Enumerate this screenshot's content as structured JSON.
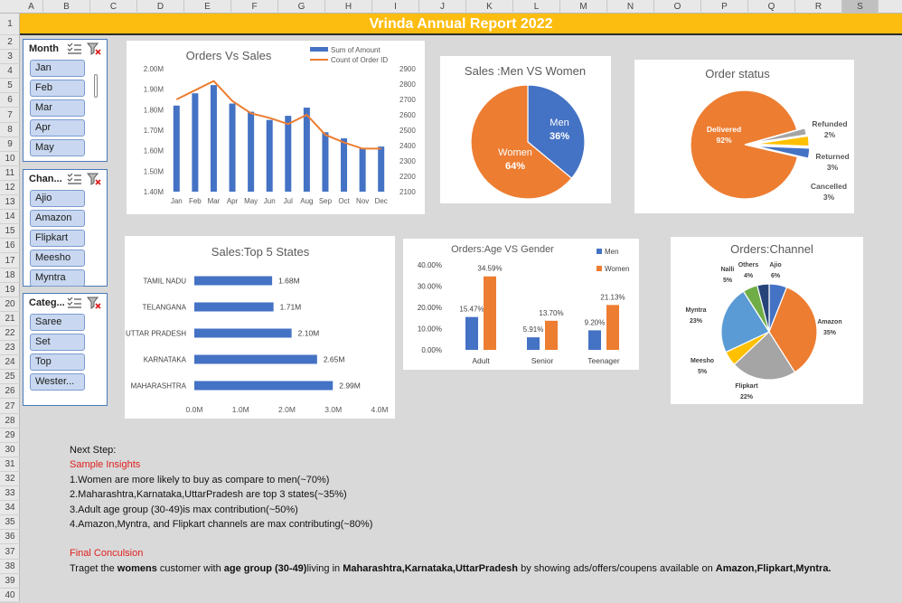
{
  "columns": [
    "A",
    "B",
    "C",
    "D",
    "E",
    "F",
    "G",
    "H",
    "I",
    "J",
    "K",
    "L",
    "M",
    "N",
    "O",
    "P",
    "Q",
    "R",
    "S"
  ],
  "rows": [
    "1",
    "2",
    "3",
    "4",
    "5",
    "6",
    "7",
    "8",
    "9",
    "10",
    "11",
    "12",
    "13",
    "14",
    "15",
    "16",
    "17",
    "18",
    "19",
    "20",
    "21",
    "22",
    "23",
    "24",
    "25",
    "26",
    "27",
    "28",
    "29",
    "30",
    "31",
    "32",
    "33",
    "34",
    "35",
    "36",
    "37",
    "38",
    "39",
    "40"
  ],
  "banner_title": "Vrinda  Annual Report 2022",
  "slicers": {
    "month": {
      "title": "Month",
      "items": [
        "Jan",
        "Feb",
        "Mar",
        "Apr",
        "May"
      ]
    },
    "channel": {
      "title": "Chan...",
      "items": [
        "Ajio",
        "Amazon",
        "Flipkart",
        "Meesho",
        "Myntra"
      ]
    },
    "category": {
      "title": "Categ...",
      "items": [
        "Saree",
        "Set",
        "Top",
        "Wester..."
      ]
    }
  },
  "colors": {
    "blue": "#4472c4",
    "orange": "#ed7d31",
    "gray": "#a5a5a5",
    "yellow": "#ffc000",
    "lightblue": "#5b9bd5",
    "green": "#70ad47",
    "darkblue": "#264478",
    "banner": "#fdbd10"
  },
  "chart_data": [
    {
      "id": "orders_vs_sales",
      "type": "bar+line",
      "title": "Orders Vs Sales",
      "categories": [
        "Jan",
        "Feb",
        "Mar",
        "Apr",
        "May",
        "Jun",
        "Jul",
        "Aug",
        "Sep",
        "Oct",
        "Nov",
        "Dec"
      ],
      "series": [
        {
          "name": "Sum of Amount",
          "type": "bar",
          "axis": "left",
          "values": [
            1.82,
            1.88,
            1.92,
            1.83,
            1.79,
            1.75,
            1.77,
            1.81,
            1.69,
            1.66,
            1.61,
            1.62
          ]
        },
        {
          "name": "Count of Order ID",
          "type": "line",
          "axis": "right",
          "values": [
            2700,
            2760,
            2820,
            2690,
            2610,
            2580,
            2540,
            2600,
            2470,
            2420,
            2380,
            2380
          ]
        }
      ],
      "y_left_ticks": [
        "2.00M",
        "1.90M",
        "1.80M",
        "1.70M",
        "1.60M",
        "1.50M",
        "1.40M"
      ],
      "ylim_left": [
        1.4,
        2.0
      ],
      "y_right_ticks": [
        "2900",
        "2800",
        "2700",
        "2600",
        "2500",
        "2400",
        "2300",
        "2200",
        "2100"
      ],
      "ylim_right": [
        2100,
        2900
      ]
    },
    {
      "id": "sales_men_women",
      "type": "pie",
      "title": "Sales :Men VS Women",
      "slices": [
        {
          "label": "Men",
          "value": 36,
          "pct": "36%"
        },
        {
          "label": "Women",
          "value": 64,
          "pct": "64%"
        }
      ]
    },
    {
      "id": "order_status",
      "type": "pie",
      "title": "Order status",
      "slices": [
        {
          "label": "Delivered",
          "value": 92,
          "pct": "92%"
        },
        {
          "label": "Refunded",
          "value": 2,
          "pct": "2%"
        },
        {
          "label": "Returned",
          "value": 3,
          "pct": "3%"
        },
        {
          "label": "Cancelled",
          "value": 3,
          "pct": "3%"
        }
      ]
    },
    {
      "id": "top5_states",
      "type": "bar",
      "orientation": "horizontal",
      "title": "Sales:Top 5 States",
      "categories": [
        "TAMIL NADU",
        "TELANGANA",
        "UTTAR PRADESH",
        "KARNATAKA",
        "MAHARASHTRA"
      ],
      "values": [
        1.68,
        1.71,
        2.1,
        2.65,
        2.99
      ],
      "labels": [
        "1.68M",
        "1.71M",
        "2.10M",
        "2.65M",
        "2.99M"
      ],
      "x_ticks": [
        "0.0M",
        "1.0M",
        "2.0M",
        "3.0M",
        "4.0M"
      ],
      "xlim": [
        0,
        4
      ]
    },
    {
      "id": "age_vs_gender",
      "type": "bar",
      "title": "Orders:Age VS Gender",
      "categories": [
        "Adult",
        "Senior",
        "Teenager"
      ],
      "series": [
        {
          "name": "Men",
          "values": [
            15.47,
            5.91,
            9.2
          ],
          "labels": [
            "15.47%",
            "5.91%",
            "9.20%"
          ]
        },
        {
          "name": "Women",
          "values": [
            34.59,
            13.7,
            21.13
          ],
          "labels": [
            "34.59%",
            "13.70%",
            "21.13%"
          ]
        }
      ],
      "y_ticks": [
        "40.00%",
        "30.00%",
        "20.00%",
        "10.00%",
        "0.00%"
      ],
      "ylim": [
        0,
        40
      ]
    },
    {
      "id": "orders_channel",
      "type": "pie",
      "title": "Orders:Channel",
      "slices": [
        {
          "label": "Ajio",
          "value": 6,
          "pct": "6%"
        },
        {
          "label": "Amazon",
          "value": 35,
          "pct": "35%"
        },
        {
          "label": "Flipkart",
          "value": 22,
          "pct": "22%"
        },
        {
          "label": "Meesho",
          "value": 5,
          "pct": "5%"
        },
        {
          "label": "Myntra",
          "value": 23,
          "pct": "23%"
        },
        {
          "label": "Nalli",
          "value": 5,
          "pct": "5%"
        },
        {
          "label": "Others",
          "value": 4,
          "pct": "4%"
        }
      ]
    }
  ],
  "insights": {
    "next_step": "Next Step:",
    "sample_heading": "Sample Insights",
    "items": [
      "1.Women  are more likely to buy as compare to men(~70%)",
      "2.Maharashtra,Karnataka,UttarPradesh are top 3 states(~35%)",
      "3.Adult age group (30-49)is max contribution(~50%)",
      "4.Amazon,Myntra, and Flipkart channels are max contributing(~80%)"
    ],
    "final_heading": "Final Conculsion",
    "conclusion_parts": [
      {
        "text": "Traget the ",
        "bold": false
      },
      {
        "text": "womens",
        "bold": true
      },
      {
        "text": " customer with ",
        "bold": false
      },
      {
        "text": "age group (30-49)",
        "bold": true
      },
      {
        "text": "living in ",
        "bold": false
      },
      {
        "text": "Maharashtra,Karnataka,UttarPradesh",
        "bold": true
      },
      {
        "text": " by showing ads/offers/coupens available on ",
        "bold": false
      },
      {
        "text": "Amazon,Flipkart,Myntra.",
        "bold": true
      }
    ]
  }
}
